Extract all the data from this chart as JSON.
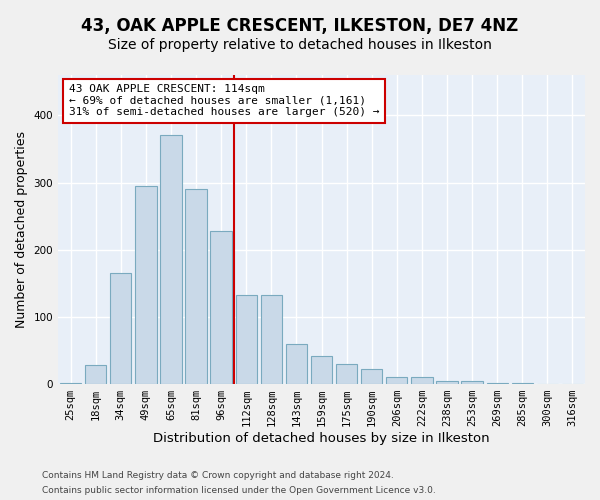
{
  "title": "43, OAK APPLE CRESCENT, ILKESTON, DE7 4NZ",
  "subtitle": "Size of property relative to detached houses in Ilkeston",
  "xlabel": "Distribution of detached houses by size in Ilkeston",
  "ylabel": "Number of detached properties",
  "categories": [
    "25sqm",
    "18sqm",
    "34sqm",
    "49sqm",
    "65sqm",
    "81sqm",
    "96sqm",
    "112sqm",
    "128sqm",
    "143sqm",
    "159sqm",
    "175sqm",
    "190sqm",
    "206sqm",
    "222sqm",
    "238sqm",
    "253sqm",
    "269sqm",
    "285sqm",
    "300sqm",
    "316sqm"
  ],
  "values": [
    1,
    28,
    165,
    295,
    370,
    290,
    228,
    133,
    133,
    60,
    42,
    30,
    22,
    10,
    10,
    5,
    4,
    1,
    1,
    0,
    0
  ],
  "bar_color": "#c9d9e8",
  "bar_edge_color": "#7aaabf",
  "bg_color": "#e8eff8",
  "grid_color": "#ffffff",
  "vline_x": 6.5,
  "vline_color": "#cc0000",
  "annotation_text": "43 OAK APPLE CRESCENT: 114sqm\n← 69% of detached houses are smaller (1,161)\n31% of semi-detached houses are larger (520) →",
  "annotation_box_color": "#ffffff",
  "annotation_box_edge": "#cc0000",
  "footer1": "Contains HM Land Registry data © Crown copyright and database right 2024.",
  "footer2": "Contains public sector information licensed under the Open Government Licence v3.0.",
  "title_fontsize": 12,
  "subtitle_fontsize": 10,
  "ylabel_fontsize": 9,
  "xlabel_fontsize": 9.5,
  "tick_fontsize": 7.5,
  "annotation_fontsize": 8,
  "footer_fontsize": 6.5,
  "ylim": [
    0,
    460
  ]
}
